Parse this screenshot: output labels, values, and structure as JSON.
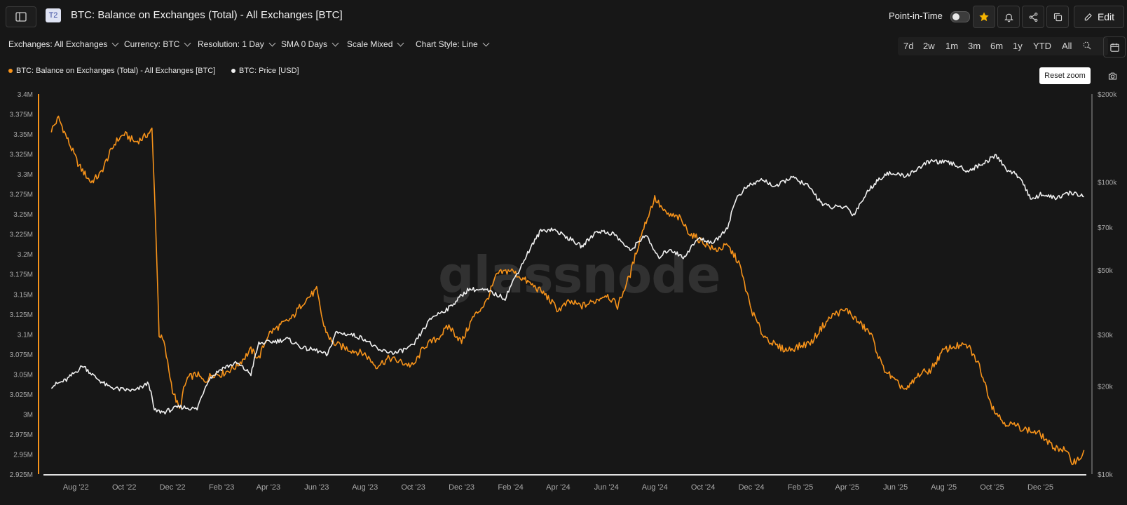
{
  "header": {
    "badge": "T2",
    "title": "BTC: Balance on Exchanges (Total) - All Exchanges [BTC]",
    "point_in_time_label": "Point-in-Time",
    "edit_label": "Edit",
    "accent_color": "#f7931a"
  },
  "filters": [
    {
      "label": "Exchanges: All Exchanges"
    },
    {
      "label": "Currency: BTC"
    },
    {
      "label": "Resolution: 1 Day"
    },
    {
      "label": "SMA 0 Days"
    },
    {
      "label": "Scale Mixed"
    },
    {
      "label": "Chart Style: Line"
    }
  ],
  "ranges": [
    "7d",
    "2w",
    "1m",
    "3m",
    "6m",
    "1y",
    "YTD",
    "All"
  ],
  "reset_zoom_label": "Reset zoom",
  "watermark": "glassnode",
  "chart_data": {
    "type": "line",
    "legend_placement": "top-left",
    "grid": false,
    "x_ticks": [
      "Aug '22",
      "Oct '22",
      "Dec '22",
      "Feb '23",
      "Apr '23",
      "Jun '23",
      "Aug '23",
      "Oct '23",
      "Dec '23",
      "Feb '24",
      "Apr '24",
      "Jun '24",
      "Aug '24",
      "Oct '24",
      "Dec '24",
      "Feb '25",
      "Apr '25",
      "Jun '25",
      "Aug '25",
      "Oct '25",
      "Dec '25"
    ],
    "y_left": {
      "ticks": [
        "3.4M",
        "3.375M",
        "3.35M",
        "3.325M",
        "3.3M",
        "3.275M",
        "3.25M",
        "3.225M",
        "3.2M",
        "3.175M",
        "3.15M",
        "3.125M",
        "3.1M",
        "3.075M",
        "3.05M",
        "3.025M",
        "3M",
        "2.975M",
        "2.95M",
        "2.925M"
      ],
      "range": [
        2.925,
        3.4
      ],
      "unit": "M"
    },
    "y_right": {
      "ticks": [
        "$200k",
        "$100k",
        "$70k",
        "$50k",
        "$30k",
        "$20k",
        "$10k"
      ],
      "tick_values": [
        200000,
        100000,
        70000,
        50000,
        30000,
        20000,
        10000
      ],
      "scale": "log",
      "range": [
        10000,
        200000
      ]
    },
    "series": [
      {
        "name": "BTC: Balance on Exchanges (Total) - All Exchanges [BTC]",
        "color": "#f7931a",
        "axis": "left",
        "x": [
          "2022-07-01",
          "2022-07-10",
          "2022-07-25",
          "2022-08-05",
          "2022-08-20",
          "2022-09-01",
          "2022-09-10",
          "2022-09-20",
          "2022-10-01",
          "2022-10-15",
          "2022-10-25",
          "2022-11-05",
          "2022-11-10",
          "2022-11-14",
          "2022-11-20",
          "2022-12-01",
          "2022-12-10",
          "2022-12-15",
          "2022-12-20",
          "2023-01-01",
          "2023-01-10",
          "2023-01-20",
          "2023-02-01",
          "2023-02-20",
          "2023-03-10",
          "2023-03-20",
          "2023-04-01",
          "2023-04-15",
          "2023-05-01",
          "2023-05-15",
          "2023-06-01",
          "2023-06-10",
          "2023-06-20",
          "2023-07-01",
          "2023-07-15",
          "2023-08-01",
          "2023-08-15",
          "2023-09-01",
          "2023-09-15",
          "2023-10-01",
          "2023-10-15",
          "2023-11-01",
          "2023-11-15",
          "2023-12-01",
          "2023-12-15",
          "2024-01-01",
          "2024-01-15",
          "2024-02-01",
          "2024-02-15",
          "2024-03-01",
          "2024-03-15",
          "2024-04-01",
          "2024-04-15",
          "2024-05-01",
          "2024-05-15",
          "2024-06-01",
          "2024-06-15",
          "2024-07-01",
          "2024-07-15",
          "2024-08-01",
          "2024-08-15",
          "2024-09-01",
          "2024-09-15",
          "2024-10-01",
          "2024-10-15",
          "2024-11-01",
          "2024-11-15",
          "2024-12-01",
          "2024-12-15",
          "2025-01-01",
          "2025-01-15",
          "2025-02-01",
          "2025-02-15",
          "2025-03-01",
          "2025-03-15",
          "2025-04-01",
          "2025-04-15",
          "2025-05-01",
          "2025-05-15",
          "2025-06-01",
          "2025-06-15",
          "2025-07-01",
          "2025-07-15",
          "2025-08-01",
          "2025-08-15",
          "2025-09-01",
          "2025-09-15",
          "2025-10-01",
          "2025-10-15",
          "2025-11-01",
          "2025-11-15",
          "2025-12-01",
          "2025-12-15",
          "2026-01-01",
          "2026-01-10",
          "2026-01-20",
          "2026-01-25"
        ],
        "values": [
          3.355,
          3.37,
          3.335,
          3.31,
          3.29,
          3.3,
          3.32,
          3.34,
          3.35,
          3.34,
          3.345,
          3.355,
          3.23,
          3.1,
          3.09,
          3.03,
          3.005,
          3.03,
          3.045,
          3.05,
          3.04,
          3.05,
          3.05,
          3.06,
          3.08,
          3.07,
          3.1,
          3.11,
          3.12,
          3.14,
          3.155,
          3.11,
          3.09,
          3.085,
          3.08,
          3.075,
          3.06,
          3.07,
          3.065,
          3.06,
          3.085,
          3.095,
          3.11,
          3.09,
          3.12,
          3.14,
          3.175,
          3.18,
          3.17,
          3.16,
          3.15,
          3.13,
          3.14,
          3.135,
          3.14,
          3.15,
          3.135,
          3.175,
          3.225,
          3.27,
          3.25,
          3.245,
          3.225,
          3.215,
          3.205,
          3.21,
          3.19,
          3.13,
          3.1,
          3.085,
          3.08,
          3.085,
          3.09,
          3.11,
          3.125,
          3.13,
          3.115,
          3.1,
          3.06,
          3.04,
          3.03,
          3.05,
          3.055,
          3.08,
          3.085,
          3.085,
          3.06,
          3.01,
          2.99,
          2.985,
          2.98,
          2.975,
          2.96,
          2.955,
          2.94,
          2.945,
          2.955
        ]
      },
      {
        "name": "BTC: Price [USD]",
        "color": "#f0f0f0",
        "axis": "right",
        "x": [
          "2022-07-01",
          "2022-07-20",
          "2022-08-10",
          "2022-08-25",
          "2022-09-10",
          "2022-09-25",
          "2022-10-15",
          "2022-11-01",
          "2022-11-08",
          "2022-11-20",
          "2022-12-10",
          "2023-01-01",
          "2023-01-15",
          "2023-02-01",
          "2023-02-20",
          "2023-03-10",
          "2023-03-20",
          "2023-04-10",
          "2023-04-25",
          "2023-05-15",
          "2023-06-01",
          "2023-06-15",
          "2023-06-25",
          "2023-07-15",
          "2023-08-01",
          "2023-08-18",
          "2023-09-10",
          "2023-10-01",
          "2023-10-25",
          "2023-11-15",
          "2023-12-10",
          "2024-01-01",
          "2024-01-25",
          "2024-02-15",
          "2024-03-10",
          "2024-03-25",
          "2024-04-15",
          "2024-05-01",
          "2024-05-20",
          "2024-06-10",
          "2024-07-01",
          "2024-07-20",
          "2024-08-05",
          "2024-08-20",
          "2024-09-06",
          "2024-09-25",
          "2024-10-15",
          "2024-11-01",
          "2024-11-12",
          "2024-11-25",
          "2024-12-15",
          "2025-01-01",
          "2025-01-20",
          "2025-02-10",
          "2025-03-01",
          "2025-03-10",
          "2025-04-01",
          "2025-04-09",
          "2025-05-01",
          "2025-05-20",
          "2025-06-15",
          "2025-07-15",
          "2025-08-10",
          "2025-09-01",
          "2025-09-20",
          "2025-10-06",
          "2025-10-20",
          "2025-11-05",
          "2025-11-20",
          "2025-12-01",
          "2025-12-20",
          "2026-01-10",
          "2026-01-25"
        ],
        "values": [
          20000,
          21000,
          23500,
          21500,
          20000,
          19500,
          19300,
          20500,
          16500,
          16300,
          17000,
          16700,
          21000,
          23000,
          24000,
          22000,
          28000,
          28500,
          29000,
          27000,
          26500,
          25500,
          30500,
          30000,
          29000,
          26500,
          26000,
          27500,
          34500,
          37000,
          43000,
          42500,
          40000,
          52000,
          68000,
          69000,
          64000,
          60000,
          68000,
          66500,
          58000,
          66000,
          55000,
          59000,
          55000,
          64000,
          62000,
          70000,
          88000,
          96000,
          102000,
          96000,
          104000,
          97000,
          84000,
          82000,
          82000,
          77000,
          96000,
          107000,
          105000,
          118000,
          116000,
          109000,
          116000,
          123000,
          110000,
          104000,
          86000,
          91000,
          88000,
          92000,
          89000
        ]
      }
    ]
  }
}
